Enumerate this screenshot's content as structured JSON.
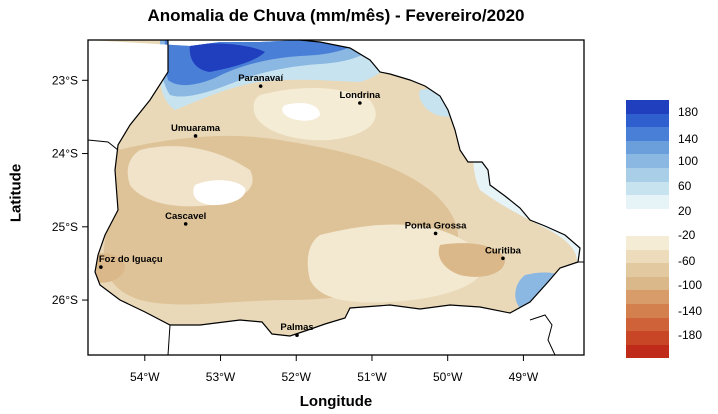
{
  "title": "Anomalia de Chuva (mm/mês) - Fevereiro/2020",
  "xlabel": "Longitude",
  "ylabel": "Latitude",
  "x_ticks": [
    "54°W",
    "53°W",
    "52°W",
    "51°W",
    "50°W",
    "49°W"
  ],
  "y_ticks": [
    "23°S",
    "24°S",
    "25°S",
    "26°S"
  ],
  "cities": [
    {
      "name": "Paranavaí"
    },
    {
      "name": "Londrina"
    },
    {
      "name": "Umuarama"
    },
    {
      "name": "Cascavel"
    },
    {
      "name": "Ponta Grossa"
    },
    {
      "name": "Curitiba"
    },
    {
      "name": "Foz do Iguaçu"
    },
    {
      "name": "Palmas"
    }
  ],
  "legend": {
    "labels": [
      "180",
      "140",
      "100",
      "60",
      "20",
      "-20",
      "-60",
      "-100",
      "-140",
      "-180"
    ],
    "colors": {
      "c180": "#1f3fbf",
      "c160": "#2f5fcf",
      "c140": "#4a7fd8",
      "c120": "#6a9fdc",
      "c100": "#8ab8e2",
      "c80": "#a9cfe8",
      "c60": "#c7e3ef",
      "c40": "#e6f3f7",
      "c20": "#ffffff",
      "n20": "#f5ecd6",
      "n40": "#ecdcbc",
      "n60": "#e3c9a0",
      "n80": "#dbb88a",
      "n100": "#d89c6a",
      "n120": "#d4804e",
      "n140": "#cf6238",
      "n160": "#c84626",
      "n180": "#c02a18"
    }
  },
  "chart_data": {
    "type": "heatmap",
    "title": "Anomalia de Chuva (mm/mês) - Fevereiro/2020",
    "xlabel": "Longitude",
    "ylabel": "Latitude",
    "xlim": [
      -54.75,
      -48.2
    ],
    "ylim": [
      -26.75,
      -22.45
    ],
    "color_scale_labels": [
      180,
      140,
      100,
      60,
      20,
      -20,
      -60,
      -100,
      -140,
      -180
    ],
    "cities": [
      {
        "name": "Paranavaí",
        "lon": -52.47,
        "lat": -23.08
      },
      {
        "name": "Londrina",
        "lon": -51.16,
        "lat": -23.31
      },
      {
        "name": "Umuarama",
        "lon": -53.33,
        "lat": -23.76
      },
      {
        "name": "Cascavel",
        "lon": -53.46,
        "lat": -24.96
      },
      {
        "name": "Ponta Grossa",
        "lon": -50.16,
        "lat": -25.09
      },
      {
        "name": "Curitiba",
        "lon": -49.27,
        "lat": -25.43
      },
      {
        "name": "Foz do Iguaçu",
        "lon": -54.58,
        "lat": -25.55
      },
      {
        "name": "Palmas",
        "lon": -51.99,
        "lat": -26.48
      }
    ],
    "anomaly_centers": [
      {
        "lon": -53.0,
        "lat": -22.8,
        "value": 160
      },
      {
        "lon": -51.8,
        "lat": -22.7,
        "value": 100
      },
      {
        "lon": -50.0,
        "lat": -23.3,
        "value": 60
      },
      {
        "lon": -48.6,
        "lat": -25.5,
        "value": 40
      },
      {
        "lon": -49.1,
        "lat": -26.0,
        "value": 80
      },
      {
        "lon": -52.7,
        "lat": -24.2,
        "value": -70
      },
      {
        "lon": -54.3,
        "lat": -25.4,
        "value": -80
      },
      {
        "lon": -52.5,
        "lat": -25.9,
        "value": -60
      },
      {
        "lon": -49.3,
        "lat": -25.4,
        "value": -80
      },
      {
        "lon": -51.3,
        "lat": -23.8,
        "value": -50
      }
    ]
  }
}
